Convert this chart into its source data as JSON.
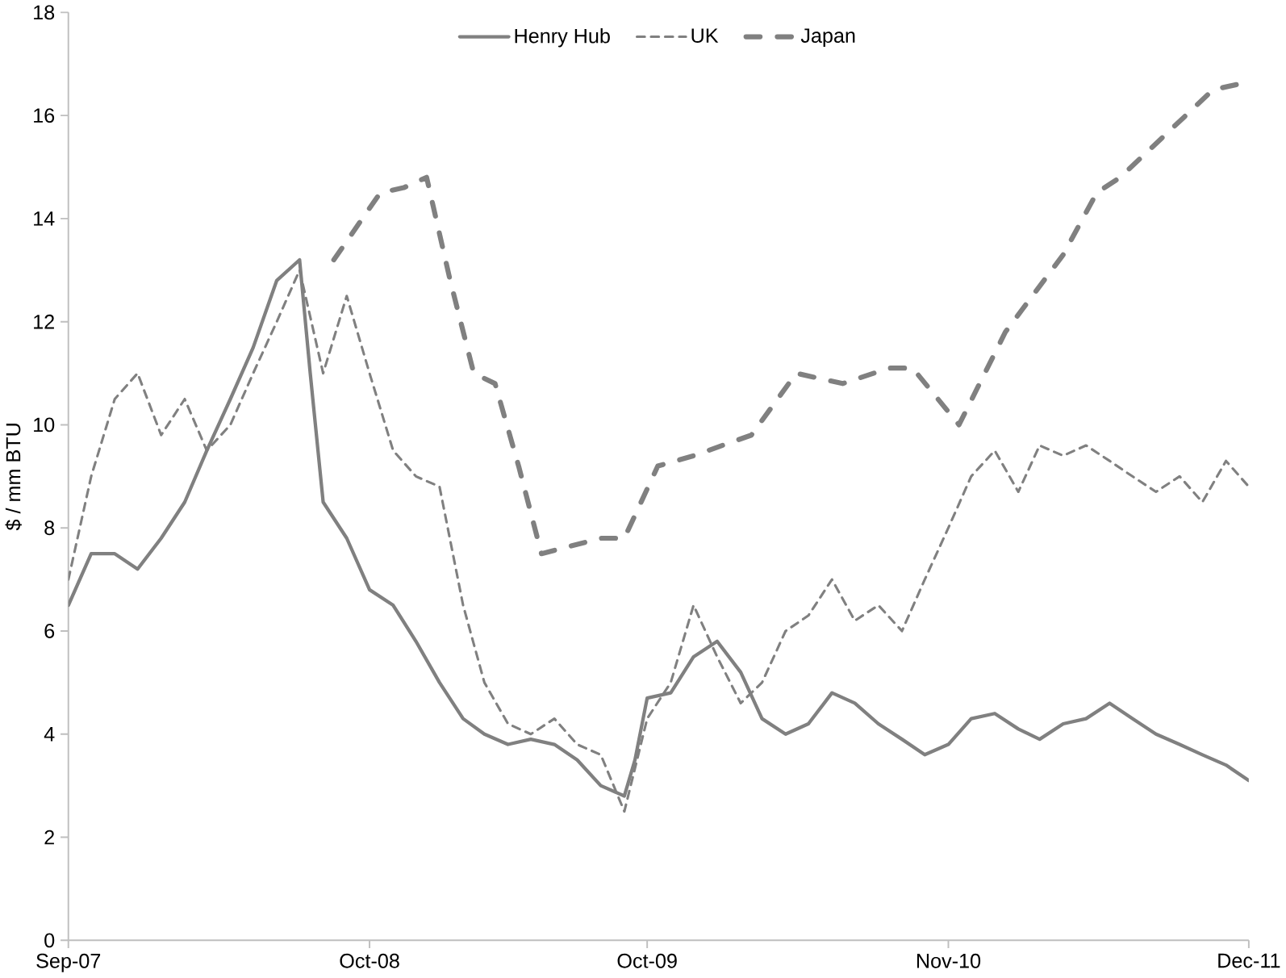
{
  "chart_data": {
    "type": "line",
    "ylabel": "$ / mm BTU",
    "legend": "top",
    "xlim": [
      "2007-09-01",
      "2011-12-01"
    ],
    "ylim": [
      0,
      18
    ],
    "xticks": [
      {
        "value": "2007-09-01",
        "label": "Sep-07"
      },
      {
        "value": "2008-10-01",
        "label": "Oct-08"
      },
      {
        "value": "2009-10-01",
        "label": "Oct-09"
      },
      {
        "value": "2010-11-01",
        "label": "Nov-10"
      },
      {
        "value": "2011-12-01",
        "label": "Dec-11"
      }
    ],
    "yticks": [
      0,
      2,
      4,
      6,
      8,
      10,
      12,
      14,
      16,
      18
    ],
    "series": [
      {
        "name": "Henry Hub",
        "color": "#808080",
        "line_style": "solid",
        "x": [
          "2007-09-01",
          "2007-10-01",
          "2007-11-01",
          "2007-12-01",
          "2008-01-01",
          "2008-02-01",
          "2008-03-01",
          "2008-04-01",
          "2008-05-01",
          "2008-06-01",
          "2008-07-01",
          "2008-07-15",
          "2008-08-01",
          "2008-09-01",
          "2008-10-01",
          "2008-11-01",
          "2008-12-01",
          "2009-01-01",
          "2009-02-01",
          "2009-03-01",
          "2009-04-01",
          "2009-05-01",
          "2009-06-01",
          "2009-07-01",
          "2009-08-01",
          "2009-09-01",
          "2009-09-15",
          "2009-10-01",
          "2009-11-01",
          "2009-12-01",
          "2010-01-01",
          "2010-02-01",
          "2010-03-01",
          "2010-04-01",
          "2010-05-01",
          "2010-06-01",
          "2010-07-01",
          "2010-08-01",
          "2010-09-01",
          "2010-10-01",
          "2010-11-01",
          "2010-12-01",
          "2011-01-01",
          "2011-02-01",
          "2011-03-01",
          "2011-04-01",
          "2011-05-01",
          "2011-06-01",
          "2011-07-01",
          "2011-08-01",
          "2011-09-01",
          "2011-10-01",
          "2011-11-01",
          "2011-12-01"
        ],
        "values": [
          6.5,
          7.5,
          7.5,
          7.2,
          7.8,
          8.5,
          9.5,
          10.5,
          11.5,
          12.8,
          13.2,
          11,
          8.5,
          7.8,
          6.8,
          6.5,
          5.8,
          5.0,
          4.3,
          4.0,
          3.8,
          3.9,
          3.8,
          3.5,
          3.0,
          2.8,
          3.5,
          4.7,
          4.8,
          5.5,
          5.8,
          5.2,
          4.3,
          4.0,
          4.2,
          4.8,
          4.6,
          4.2,
          3.9,
          3.6,
          3.8,
          4.3,
          4.4,
          4.1,
          3.9,
          4.2,
          4.3,
          4.6,
          4.3,
          4.0,
          3.8,
          3.6,
          3.4,
          3.1
        ]
      },
      {
        "name": "UK",
        "color": "#808080",
        "line_style": "dashed",
        "x": [
          "2007-09-01",
          "2007-10-01",
          "2007-11-01",
          "2007-12-01",
          "2008-01-01",
          "2008-02-01",
          "2008-03-01",
          "2008-04-01",
          "2008-05-01",
          "2008-06-01",
          "2008-07-01",
          "2008-08-01",
          "2008-09-01",
          "2008-10-01",
          "2008-11-01",
          "2008-12-01",
          "2009-01-01",
          "2009-02-01",
          "2009-03-01",
          "2009-04-01",
          "2009-05-01",
          "2009-06-01",
          "2009-07-01",
          "2009-08-01",
          "2009-09-01",
          "2009-10-01",
          "2009-11-01",
          "2009-12-01",
          "2010-01-01",
          "2010-02-01",
          "2010-03-01",
          "2010-04-01",
          "2010-05-01",
          "2010-06-01",
          "2010-07-01",
          "2010-08-01",
          "2010-09-01",
          "2010-10-01",
          "2010-11-01",
          "2010-12-01",
          "2011-01-01",
          "2011-02-01",
          "2011-03-01",
          "2011-04-01",
          "2011-05-01",
          "2011-06-01",
          "2011-07-01",
          "2011-08-01",
          "2011-09-01",
          "2011-10-01",
          "2011-11-01",
          "2011-12-01"
        ],
        "values": [
          7,
          9,
          10.5,
          11,
          9.8,
          10.5,
          9.5,
          10,
          11,
          12,
          13,
          11,
          12.5,
          11,
          9.5,
          9,
          8.8,
          6.5,
          5,
          4.2,
          4.0,
          4.3,
          3.8,
          3.6,
          2.5,
          4.3,
          5.0,
          6.5,
          5.5,
          4.6,
          5.0,
          6.0,
          6.3,
          7.0,
          6.2,
          6.5,
          6.0,
          7.0,
          8.0,
          9.0,
          9.5,
          8.7,
          9.6,
          9.4,
          9.6,
          9.3,
          9.0,
          8.7,
          9.0,
          8.5,
          9.3,
          8.8
        ]
      },
      {
        "name": "Japan",
        "color": "#808080",
        "line_style": "dashed",
        "x": [
          "2008-08-15",
          "2008-10-15",
          "2008-11-15",
          "2008-12-15",
          "2009-01-15",
          "2009-02-15",
          "2009-03-15",
          "2009-04-15",
          "2009-05-15",
          "2009-08-01",
          "2009-09-01",
          "2009-10-15",
          "2009-12-01",
          "2010-02-15",
          "2010-04-15",
          "2010-06-15",
          "2010-08-15",
          "2010-09-15",
          "2010-11-15",
          "2011-01-15",
          "2011-04-01",
          "2011-05-15",
          "2011-06-15",
          "2011-10-15",
          "2011-11-15"
        ],
        "values": [
          13.2,
          14.5,
          14.6,
          14.8,
          12.8,
          11.0,
          10.8,
          9.2,
          7.5,
          7.8,
          7.8,
          9.2,
          9.4,
          9.8,
          11.0,
          10.8,
          11.1,
          11.1,
          10.0,
          11.8,
          13.3,
          14.5,
          14.8,
          16.5,
          16.6
        ]
      }
    ]
  }
}
